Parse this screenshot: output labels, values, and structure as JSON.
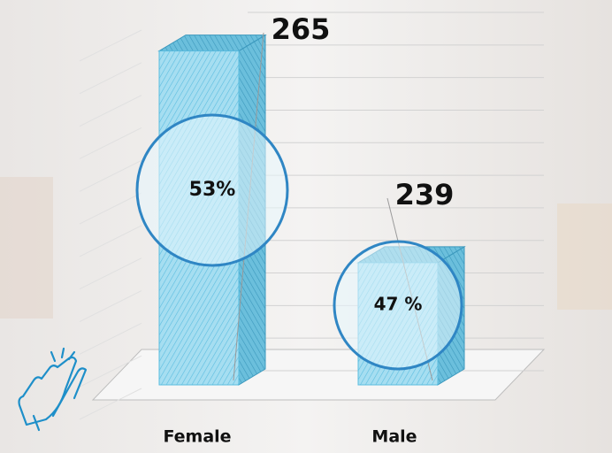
{
  "chart_data": {
    "type": "bar3d",
    "categories": [
      "Female",
      "Male"
    ],
    "values": [
      265,
      239
    ],
    "percent_values": [
      53,
      47
    ],
    "percent_labels": [
      "53%",
      "47 %"
    ],
    "color": "#9fdcf0",
    "ylim": [
      224,
      268
    ],
    "yticks": [
      224,
      228,
      232,
      236,
      240,
      244,
      248,
      252,
      256,
      260,
      264,
      268
    ],
    "grid": true
  }
}
